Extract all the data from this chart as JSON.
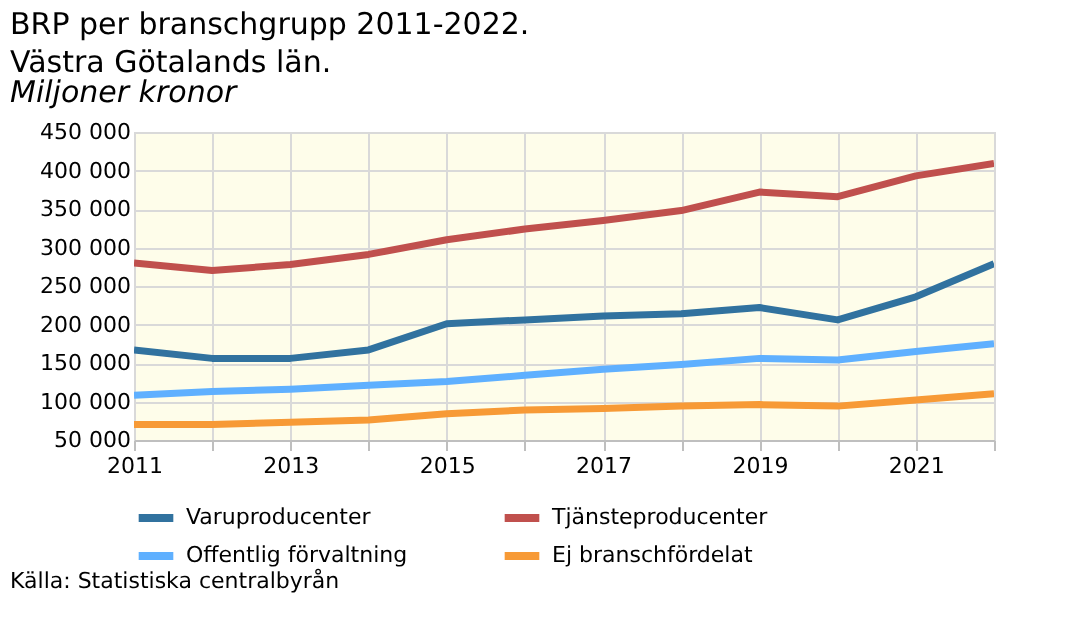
{
  "chart_data": {
    "type": "line",
    "title": "BRP per branschgrupp 2011-2022.\nVästra Götalands län.",
    "subtitle": "Miljoner kronor",
    "x": [
      2011,
      2012,
      2013,
      2014,
      2015,
      2016,
      2017,
      2018,
      2019,
      2020,
      2021,
      2022
    ],
    "series": [
      {
        "name": "Varuproducenter",
        "color": "#31729f",
        "values": [
          167000,
          156000,
          156000,
          167000,
          201000,
          206000,
          211000,
          214000,
          222000,
          206000,
          236000,
          279000
        ]
      },
      {
        "name": "Tjänsteproducenter",
        "color": "#c0504d",
        "values": [
          280000,
          270000,
          278000,
          291000,
          310000,
          324000,
          335000,
          348000,
          372000,
          366000,
          393000,
          409000
        ]
      },
      {
        "name": "Offentlig förvaltning",
        "color": "#5fb0ff",
        "values": [
          108000,
          113000,
          116000,
          121000,
          126000,
          134000,
          142000,
          148000,
          156000,
          154000,
          165000,
          175000
        ]
      },
      {
        "name": "Ej branschfördelat",
        "color": "#f79a36",
        "values": [
          70000,
          70000,
          73000,
          76000,
          84000,
          89000,
          91000,
          94000,
          96000,
          94000,
          102000,
          110000
        ]
      }
    ],
    "xlim": [
      2011,
      2022
    ],
    "xticks": [
      2011,
      {
        "value": 2012,
        "label": null
      },
      2013,
      {
        "value": 2014,
        "label": null
      },
      2015,
      {
        "value": 2016,
        "label": null
      },
      2017,
      {
        "value": 2018,
        "label": null
      },
      2019,
      {
        "value": 2020,
        "label": null
      },
      2021,
      {
        "value": 2022,
        "label": null
      }
    ],
    "ylim": [
      50000,
      450000
    ],
    "yticks": [
      {
        "value": 50000,
        "label": "50 000"
      },
      {
        "value": 100000,
        "label": "100 000"
      },
      {
        "value": 150000,
        "label": "150 000"
      },
      {
        "value": 200000,
        "label": "200 000"
      },
      {
        "value": 250000,
        "label": "250 000"
      },
      {
        "value": 300000,
        "label": "300 000"
      },
      {
        "value": 350000,
        "label": "350 000"
      },
      {
        "value": 400000,
        "label": "400 000"
      },
      {
        "value": 450000,
        "label": "450 000"
      }
    ],
    "grid": true,
    "legend": "bottom",
    "marker": "none",
    "line_style": "solid",
    "annotations": [
      "Källa: Statistiska centralbyrån"
    ]
  }
}
